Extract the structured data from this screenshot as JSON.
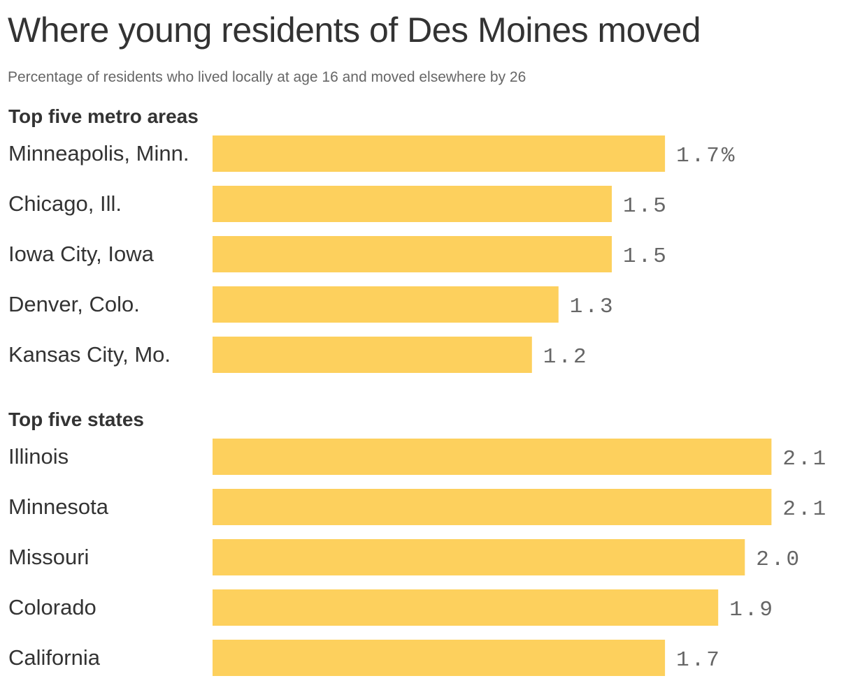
{
  "title": "Where young residents of Des Moines moved",
  "subtitle": "Percentage of residents who lived locally at age 16 and moved elsewhere by 26",
  "colors": {
    "bar": "#fdd05d",
    "title_text": "#333333",
    "value_text": "#666666"
  },
  "chart_data": [
    {
      "type": "bar",
      "orientation": "horizontal",
      "title": "Top five metro areas",
      "categories": [
        "Minneapolis, Minn.",
        "Chicago, Ill.",
        "Iowa City, Iowa",
        "Denver, Colo.",
        "Kansas City, Mo."
      ],
      "values": [
        1.7,
        1.5,
        1.5,
        1.3,
        1.2
      ],
      "value_labels": [
        "1.7%",
        "1.5",
        "1.5",
        "1.3",
        "1.2"
      ],
      "unit": "%",
      "xlim": [
        0,
        2.17
      ]
    },
    {
      "type": "bar",
      "orientation": "horizontal",
      "title": "Top five states",
      "categories": [
        "Illinois",
        "Minnesota",
        "Missouri",
        "Colorado",
        "California"
      ],
      "values": [
        2.1,
        2.1,
        2.0,
        1.9,
        1.7
      ],
      "value_labels": [
        "2.1",
        "2.1",
        "2.0",
        "1.9",
        "1.7"
      ],
      "unit": "%",
      "xlim": [
        0,
        2.17
      ]
    }
  ]
}
